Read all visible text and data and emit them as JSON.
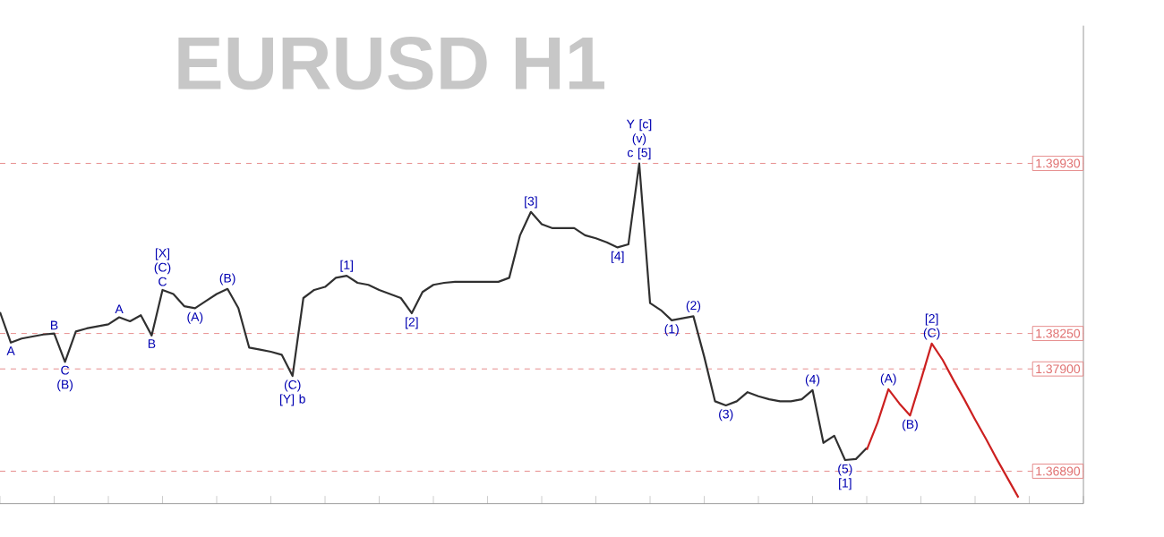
{
  "chart_data": {
    "type": "line",
    "title": "EURUSD H1",
    "categories": [
      null,
      null,
      null,
      null,
      null,
      null,
      null,
      null,
      null,
      null,
      null,
      null,
      null,
      null,
      null,
      null,
      null,
      null,
      null,
      null,
      null,
      null,
      null,
      null,
      null,
      null,
      null,
      null,
      null,
      null,
      null,
      null,
      null,
      null,
      null,
      null,
      null,
      null,
      null,
      null,
      null,
      null,
      null,
      null,
      null,
      null,
      null,
      null,
      null,
      null,
      null,
      null,
      null,
      null,
      null,
      null,
      null,
      null,
      null,
      null,
      null,
      null,
      null,
      null,
      null,
      null,
      null,
      null,
      null,
      null,
      null,
      null,
      null,
      null,
      null,
      null,
      null,
      null,
      null,
      null,
      null,
      null,
      null,
      null,
      null,
      null,
      null,
      null,
      null,
      null,
      null,
      null,
      null,
      null,
      null,
      null,
      null,
      null,
      null,
      null,
      null
    ],
    "series": [
      {
        "color": "#303030",
        "values": [
          1.3846,
          1.3816,
          1.382,
          1.3822,
          1.3824,
          1.3825,
          1.3797,
          1.3827,
          1.383,
          1.3832,
          1.3834,
          1.3841,
          1.3837,
          1.3843,
          1.3823,
          1.3868,
          1.3864,
          1.3852,
          1.385,
          1.3857,
          1.3864,
          1.3869,
          1.385,
          1.3811,
          1.3809,
          1.3807,
          1.3804,
          1.3783,
          1.386,
          1.3868,
          1.3871,
          1.388,
          1.3882,
          1.3875,
          1.3873,
          1.3868,
          1.3864,
          1.386,
          1.3845,
          1.3866,
          1.3873,
          1.3875,
          1.3876,
          1.3876,
          1.3876,
          1.3876,
          1.3876,
          1.388,
          1.3922,
          1.3945,
          1.3933,
          1.3929,
          1.3929,
          1.3929,
          1.3922,
          1.3919,
          1.3915,
          1.391,
          1.3913,
          1.3993,
          1.3855,
          1.3848,
          1.3838,
          1.384,
          1.3842,
          1.3802,
          1.3758,
          1.3754,
          1.3758,
          1.3767,
          1.3763,
          1.376,
          1.3758,
          1.3758,
          1.376,
          1.3769,
          1.3717,
          1.3724,
          1.37,
          1.3701,
          1.3712,
          null,
          null,
          null,
          null,
          null,
          null,
          null,
          null,
          null,
          null,
          null,
          null,
          null,
          null,
          null,
          null,
          null,
          null,
          null,
          null
        ]
      },
      {
        "color": "#cc2020",
        "values": [
          null,
          null,
          null,
          null,
          null,
          null,
          null,
          null,
          null,
          null,
          null,
          null,
          null,
          null,
          null,
          null,
          null,
          null,
          null,
          null,
          null,
          null,
          null,
          null,
          null,
          null,
          null,
          null,
          null,
          null,
          null,
          null,
          null,
          null,
          null,
          null,
          null,
          null,
          null,
          null,
          null,
          null,
          null,
          null,
          null,
          null,
          null,
          null,
          null,
          null,
          null,
          null,
          null,
          null,
          null,
          null,
          null,
          null,
          null,
          null,
          null,
          null,
          null,
          null,
          null,
          null,
          null,
          null,
          null,
          null,
          null,
          null,
          null,
          null,
          null,
          null,
          null,
          null,
          null,
          null,
          1.371,
          1.3737,
          1.377,
          1.3756,
          1.3744,
          1.3779,
          1.3815,
          1.3799,
          1.3779,
          1.376,
          1.374,
          1.3721,
          1.3701,
          1.3682,
          1.3663,
          null,
          null,
          null,
          null,
          null,
          null
        ]
      }
    ],
    "annotations": [
      {
        "text": "A",
        "y": 1.3816
      },
      {
        "text": "B",
        "y": 1.3825
      },
      {
        "text": "C (B)",
        "y": 1.3797
      },
      {
        "text": "A",
        "y": 1.3841
      },
      {
        "text": "B",
        "y": 1.3823
      },
      {
        "text": "[X] (C) C",
        "y": 1.3868
      },
      {
        "text": "(A)",
        "y": 1.385
      },
      {
        "text": "(B)",
        "y": 1.3869
      },
      {
        "text": "(C) [Y] b",
        "y": 1.3783
      },
      {
        "text": "[1]",
        "y": 1.3882
      },
      {
        "text": "[2]",
        "y": 1.3845
      },
      {
        "text": "[3]",
        "y": 1.3945
      },
      {
        "text": "[4]",
        "y": 1.391
      },
      {
        "text": "Y [c] (v) c [5]",
        "y": 1.3993
      },
      {
        "text": "(1)",
        "y": 1.3838
      },
      {
        "text": "(2)",
        "y": 1.3842
      },
      {
        "text": "(3)",
        "y": 1.3754
      },
      {
        "text": "(4)",
        "y": 1.3769
      },
      {
        "text": "(5) [1]",
        "y": 1.37
      },
      {
        "text": "(A)",
        "y": 1.377
      },
      {
        "text": "(B)",
        "y": 1.3744
      },
      {
        "text": "[2] (C)",
        "y": 1.3815
      }
    ],
    "ylim": [
      1.3657,
      1.4129
    ],
    "ref_lines": [
      {
        "axis": "y",
        "value": 1.3993,
        "label": "1.39930",
        "color": "#e07070",
        "line_style": "dashed"
      },
      {
        "axis": "y",
        "value": 1.3825,
        "label": "1.38250",
        "color": "#e07070",
        "line_style": "dashed"
      },
      {
        "axis": "y",
        "value": 1.379,
        "label": "1.37900",
        "color": "#e07070",
        "line_style": "dashed"
      },
      {
        "axis": "y",
        "value": 1.3689,
        "label": "1.36890",
        "color": "#e07070",
        "line_style": "dashed"
      }
    ]
  }
}
